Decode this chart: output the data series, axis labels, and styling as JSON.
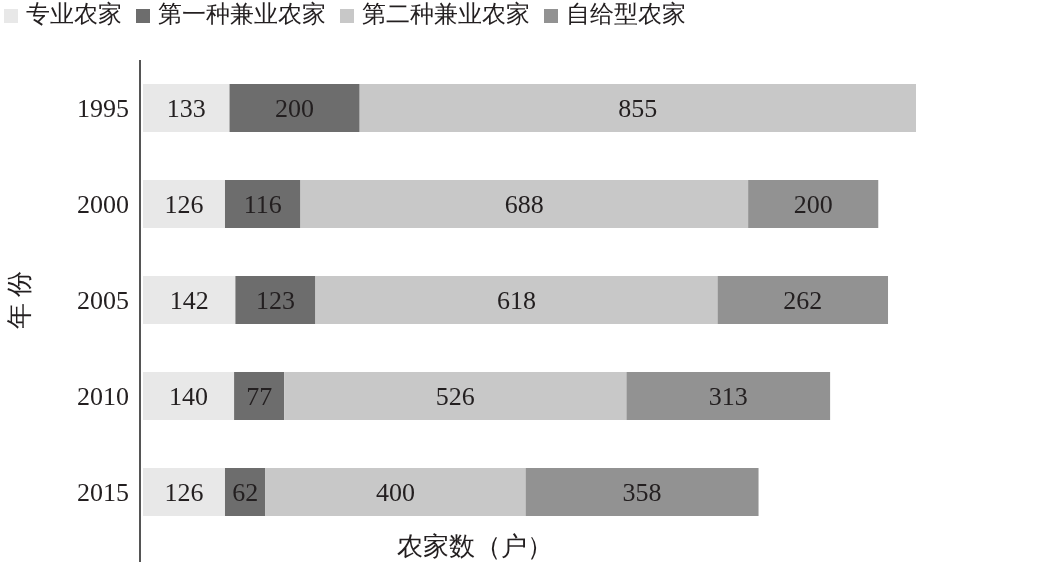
{
  "chart_data": {
    "type": "bar",
    "orientation": "horizontal",
    "stacked": true,
    "data_labels": true,
    "legend": "top",
    "xlabel": "农家数（户）",
    "ylabel": "年 份",
    "categories": [
      "1995",
      "2000",
      "2005",
      "2010",
      "2015"
    ],
    "series": [
      {
        "name": "专业农家",
        "color": "#e8e8e8",
        "values": [
          133,
          126,
          142,
          140,
          126
        ]
      },
      {
        "name": "第一种兼业农家",
        "color": "#6d6d6d",
        "values": [
          200,
          116,
          123,
          77,
          62
        ]
      },
      {
        "name": "第二种兼业农家",
        "color": "#c8c8c8",
        "values": [
          855,
          688,
          618,
          526,
          400
        ]
      },
      {
        "name": "自给型农家",
        "color": "#929292",
        "values": [
          null,
          200,
          262,
          313,
          358
        ]
      }
    ]
  }
}
